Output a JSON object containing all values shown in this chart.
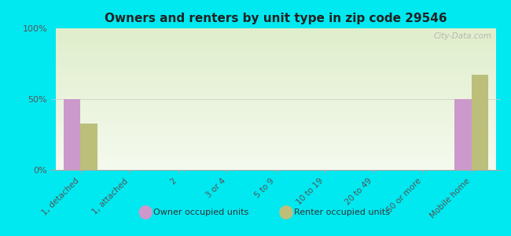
{
  "title": "Owners and renters by unit type in zip code 29546",
  "categories": [
    "1, detached",
    "1, attached",
    "2",
    "3 or 4",
    "5 to 9",
    "10 to 19",
    "20 to 49",
    "50 or more",
    "Mobile home"
  ],
  "owner_values": [
    50,
    0,
    0,
    0,
    0,
    0,
    0,
    0,
    50
  ],
  "renter_values": [
    33,
    0,
    0,
    0,
    0,
    0,
    0,
    0,
    67
  ],
  "owner_color": "#cc99cc",
  "renter_color": "#bbbf7a",
  "background_color": "#00e8f0",
  "plot_bg_top": "#e0eecc",
  "plot_bg_bottom": "#f5faee",
  "yticks": [
    0,
    50,
    100
  ],
  "ylim": [
    0,
    100
  ],
  "bar_width": 0.35,
  "watermark": "City-Data.com"
}
